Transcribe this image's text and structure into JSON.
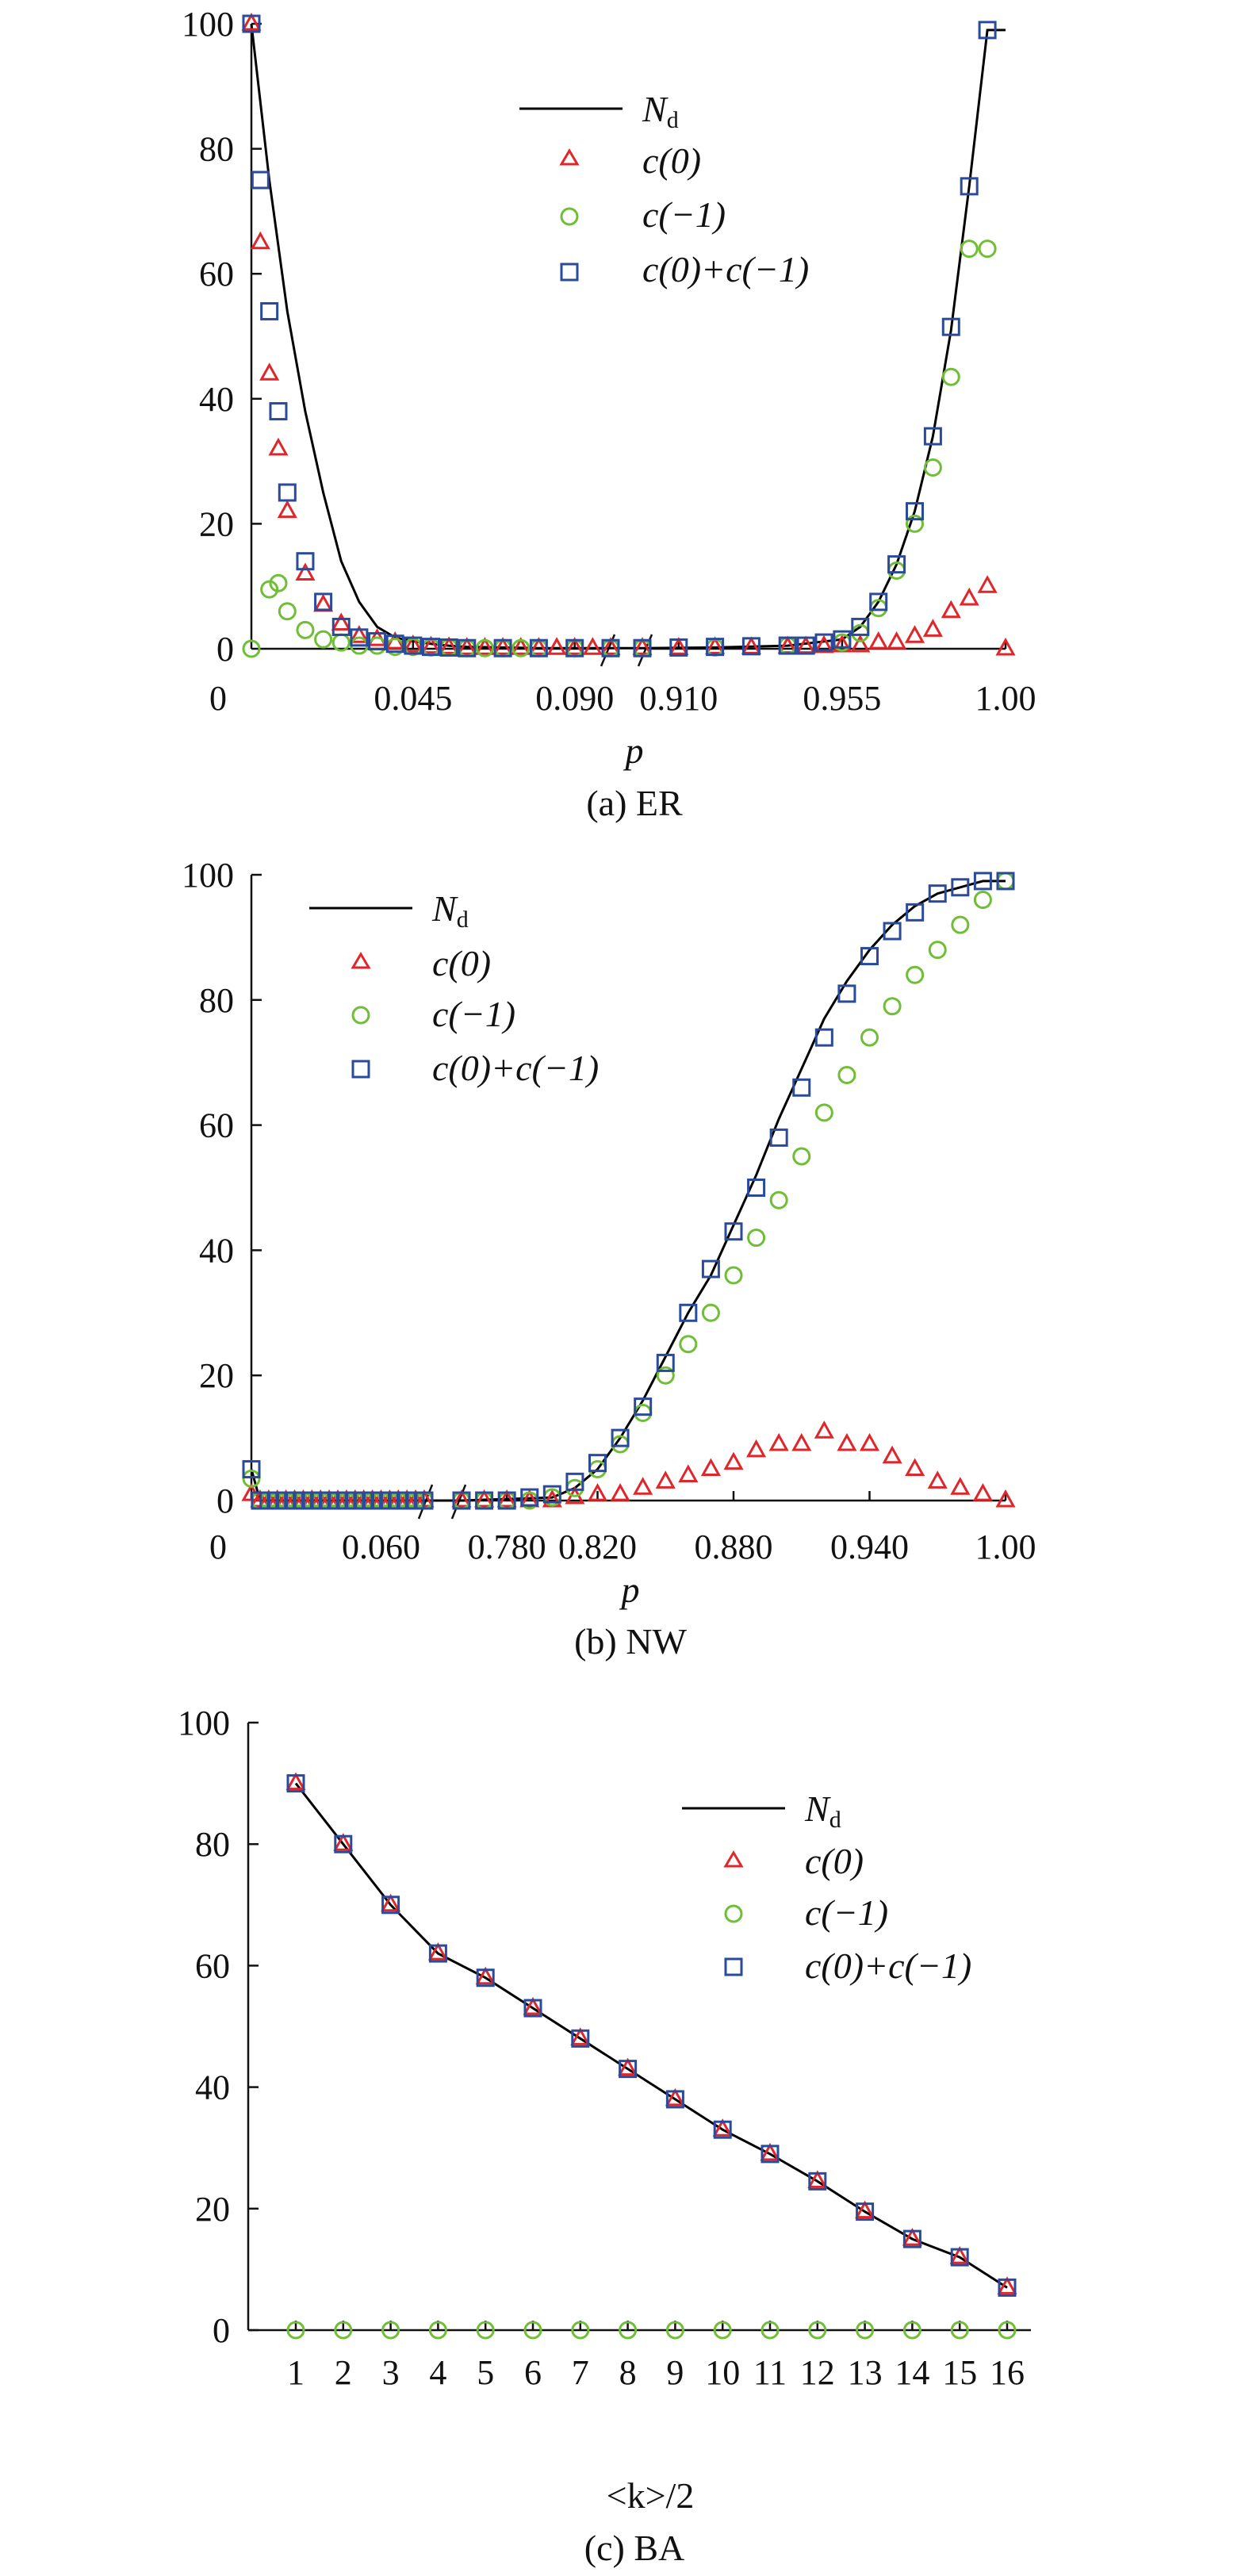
{
  "colors": {
    "c0": "#e0262a",
    "cm1": "#6fbe35",
    "sum": "#2a4b9b",
    "nd": "#000000"
  },
  "legend": {
    "nd_main": "N",
    "nd_sub": "d",
    "c0": "c(0)",
    "cm1": "c(−1)",
    "sum_a": "c(0)+c(−1)",
    "sum_b": "c(0)+c(−1)",
    "sum_c": "c(0)+c(−1)"
  },
  "chart_data": [
    {
      "type": "scatter",
      "panel": "(a) ER",
      "caption": "(a) ER",
      "xlabel": "p",
      "ylabel": "",
      "ylim": [
        0,
        100
      ],
      "x_break": [
        0.1,
        0.9
      ],
      "xticks": [
        "0.045",
        "0.090",
        "0.910",
        "0.955",
        "1.00"
      ],
      "yticks": [
        "0",
        "20",
        "40",
        "60",
        "80",
        "100"
      ],
      "legend_position": "top-center",
      "series": [
        {
          "name": "Nd",
          "style": "line",
          "x": [
            0,
            0.005,
            0.01,
            0.015,
            0.02,
            0.025,
            0.03,
            0.035,
            0.04,
            0.045,
            0.05,
            0.055,
            0.06,
            0.07,
            0.08,
            0.09,
            0.1,
            0.9,
            0.92,
            0.94,
            0.955,
            0.96,
            0.965,
            0.97,
            0.975,
            0.98,
            0.985,
            0.99,
            0.995,
            1.0
          ],
          "y": [
            100,
            75,
            54,
            38,
            25,
            14,
            7.5,
            3.5,
            1.8,
            1.2,
            0.8,
            0.5,
            0.3,
            0.2,
            0.1,
            0.1,
            0.1,
            0.1,
            0.2,
            0.5,
            1.5,
            3.5,
            7.5,
            13.5,
            22,
            34,
            51,
            74,
            99,
            99
          ]
        },
        {
          "name": "c(0)",
          "style": "triangle",
          "x": [
            0,
            0.0025,
            0.005,
            0.0075,
            0.01,
            0.015,
            0.02,
            0.025,
            0.03,
            0.035,
            0.04,
            0.045,
            0.05,
            0.055,
            0.06,
            0.065,
            0.07,
            0.075,
            0.08,
            0.085,
            0.09,
            0.095,
            0.1,
            0.9,
            0.91,
            0.92,
            0.93,
            0.94,
            0.945,
            0.95,
            0.955,
            0.96,
            0.965,
            0.97,
            0.975,
            0.98,
            0.985,
            0.99,
            0.995,
            1.0
          ],
          "y": [
            100,
            65,
            44,
            32,
            22,
            12,
            7,
            4,
            2,
            1.5,
            1,
            0.5,
            0.3,
            0.2,
            0.1,
            0.1,
            0.1,
            0.1,
            0.1,
            0.1,
            0.1,
            0.1,
            0.1,
            0.1,
            0.1,
            0.2,
            0.2,
            0.3,
            0.3,
            0.4,
            0.5,
            0.5,
            1,
            1,
            2,
            3,
            6,
            8,
            10,
            0
          ]
        },
        {
          "name": "c(−1)",
          "style": "circle",
          "x": [
            0,
            0.005,
            0.0075,
            0.01,
            0.015,
            0.02,
            0.025,
            0.03,
            0.035,
            0.04,
            0.045,
            0.05,
            0.055,
            0.06,
            0.065,
            0.07,
            0.075,
            0.08,
            0.09,
            0.1,
            0.9,
            0.92,
            0.94,
            0.955,
            0.96,
            0.965,
            0.97,
            0.975,
            0.98,
            0.985,
            0.99,
            0.995
          ],
          "y": [
            0,
            9.5,
            10.5,
            6,
            3,
            1.5,
            1,
            0.5,
            0.5,
            0.3,
            0.3,
            0.2,
            0.2,
            0.1,
            0.1,
            0.1,
            0.1,
            0.1,
            0.1,
            0.1,
            0.1,
            0.2,
            0.5,
            1,
            2.5,
            6.5,
            12.5,
            20,
            29,
            43.5,
            64,
            64
          ]
        },
        {
          "name": "c(0)+c(−1)",
          "style": "square",
          "x": [
            0,
            0.0025,
            0.005,
            0.0075,
            0.01,
            0.015,
            0.02,
            0.025,
            0.03,
            0.035,
            0.04,
            0.045,
            0.05,
            0.055,
            0.06,
            0.07,
            0.08,
            0.09,
            0.1,
            0.9,
            0.91,
            0.92,
            0.93,
            0.94,
            0.945,
            0.95,
            0.955,
            0.96,
            0.965,
            0.97,
            0.975,
            0.98,
            0.985,
            0.99,
            0.995
          ],
          "y": [
            100,
            75,
            54,
            38,
            25,
            14,
            7.5,
            3.5,
            1.8,
            1.2,
            0.8,
            0.5,
            0.3,
            0.2,
            0.1,
            0.1,
            0.1,
            0.1,
            0.1,
            0.1,
            0.2,
            0.3,
            0.4,
            0.5,
            0.5,
            1,
            1.5,
            3.5,
            7.5,
            13.5,
            22,
            34,
            51.5,
            74,
            99
          ]
        }
      ]
    },
    {
      "type": "scatter",
      "panel": "(b) NW",
      "caption": "(b) NW",
      "xlabel": "p",
      "ylabel": "",
      "ylim": [
        0,
        100
      ],
      "x_break": [
        0.08,
        0.76
      ],
      "xticks": [
        "0.060",
        "0.780",
        "0.820",
        "0.880",
        "0.940",
        "1.00"
      ],
      "yticks": [
        "0",
        "20",
        "40",
        "60",
        "80",
        "100"
      ],
      "legend_position": "top-left",
      "series": [
        {
          "name": "Nd",
          "style": "line",
          "x": [
            0,
            0.004,
            0.08,
            0.76,
            0.8,
            0.81,
            0.82,
            0.83,
            0.84,
            0.85,
            0.86,
            0.87,
            0.88,
            0.89,
            0.9,
            0.91,
            0.92,
            0.93,
            0.94,
            0.95,
            0.96,
            0.97,
            0.98,
            0.99,
            1.0
          ],
          "y": [
            5,
            0,
            0,
            0,
            0.5,
            2,
            5,
            10,
            16,
            23,
            30,
            36,
            44,
            52,
            61,
            69,
            77,
            83,
            88,
            92,
            95,
            97,
            98,
            99,
            99
          ]
        },
        {
          "name": "c(0)",
          "style": "triangle",
          "x": [
            0,
            0.004,
            0.008,
            0.012,
            0.016,
            0.02,
            0.024,
            0.028,
            0.032,
            0.036,
            0.04,
            0.044,
            0.048,
            0.052,
            0.056,
            0.06,
            0.064,
            0.068,
            0.072,
            0.076,
            0.08,
            0.76,
            0.77,
            0.78,
            0.79,
            0.8,
            0.81,
            0.82,
            0.83,
            0.84,
            0.85,
            0.86,
            0.87,
            0.88,
            0.89,
            0.9,
            0.91,
            0.92,
            0.93,
            0.94,
            0.95,
            0.96,
            0.97,
            0.98,
            0.99,
            1.0
          ],
          "y": [
            1,
            0,
            0,
            0,
            0,
            0,
            0,
            0,
            0,
            0,
            0,
            0,
            0,
            0,
            0,
            0,
            0,
            0,
            0,
            0,
            0,
            0,
            0,
            0,
            0,
            0,
            0.5,
            1,
            1,
            2,
            3,
            4,
            5,
            6,
            8,
            9,
            9,
            11,
            9,
            9,
            7,
            5,
            3,
            2,
            1,
            0
          ]
        },
        {
          "name": "c(−1)",
          "style": "circle",
          "x": [
            0,
            0.004,
            0.008,
            0.012,
            0.016,
            0.02,
            0.024,
            0.028,
            0.032,
            0.036,
            0.04,
            0.044,
            0.048,
            0.052,
            0.056,
            0.06,
            0.064,
            0.068,
            0.072,
            0.076,
            0.08,
            0.76,
            0.77,
            0.78,
            0.79,
            0.8,
            0.81,
            0.82,
            0.83,
            0.84,
            0.85,
            0.86,
            0.87,
            0.88,
            0.89,
            0.9,
            0.91,
            0.92,
            0.93,
            0.94,
            0.95,
            0.96,
            0.97,
            0.98,
            0.99,
            1.0
          ],
          "y": [
            3.5,
            0,
            0,
            0,
            0,
            0,
            0,
            0,
            0,
            0,
            0,
            0,
            0,
            0,
            0,
            0,
            0,
            0,
            0,
            0,
            0,
            0,
            0,
            0,
            0,
            0.5,
            2,
            5,
            9,
            14,
            20,
            25,
            30,
            36,
            42,
            48,
            55,
            62,
            68,
            74,
            79,
            84,
            88,
            92,
            96,
            99
          ]
        },
        {
          "name": "c(0)+c(−1)",
          "style": "square",
          "x": [
            0,
            0.004,
            0.008,
            0.012,
            0.016,
            0.02,
            0.024,
            0.028,
            0.032,
            0.036,
            0.04,
            0.044,
            0.048,
            0.052,
            0.056,
            0.06,
            0.064,
            0.068,
            0.072,
            0.076,
            0.08,
            0.76,
            0.77,
            0.78,
            0.79,
            0.8,
            0.81,
            0.82,
            0.83,
            0.84,
            0.85,
            0.86,
            0.87,
            0.88,
            0.89,
            0.9,
            0.91,
            0.92,
            0.93,
            0.94,
            0.95,
            0.96,
            0.97,
            0.98,
            0.99,
            1.0
          ],
          "y": [
            5,
            0,
            0,
            0,
            0,
            0,
            0,
            0,
            0,
            0,
            0,
            0,
            0,
            0,
            0,
            0,
            0,
            0,
            0,
            0,
            0,
            0,
            0,
            0,
            0.5,
            1,
            3,
            6,
            10,
            15,
            22,
            30,
            37,
            43,
            50,
            58,
            66,
            74,
            81,
            87,
            91,
            94,
            97,
            98,
            99,
            99
          ]
        }
      ]
    },
    {
      "type": "line",
      "panel": "(c) BA",
      "caption": "(c) BA",
      "xlabel": "<k>/2",
      "ylabel": "",
      "ylim": [
        0,
        100
      ],
      "xticks": [
        "1",
        "2",
        "3",
        "4",
        "5",
        "6",
        "7",
        "8",
        "9",
        "10",
        "11",
        "12",
        "13",
        "14",
        "15",
        "16"
      ],
      "yticks": [
        "0",
        "20",
        "40",
        "60",
        "80",
        "100"
      ],
      "legend_position": "top-right",
      "series": [
        {
          "name": "Nd",
          "style": "line",
          "x": [
            1,
            2,
            3,
            4,
            5,
            6,
            7,
            8,
            9,
            10,
            11,
            12,
            13,
            14,
            15,
            16
          ],
          "y": [
            90,
            80,
            70,
            62,
            58,
            53,
            48,
            43,
            38,
            33,
            29,
            24.5,
            19.5,
            15,
            12,
            7
          ]
        },
        {
          "name": "c(0)",
          "style": "triangle",
          "x": [
            1,
            2,
            3,
            4,
            5,
            6,
            7,
            8,
            9,
            10,
            11,
            12,
            13,
            14,
            15,
            16
          ],
          "y": [
            90,
            80,
            70,
            62,
            58,
            53,
            48,
            43,
            38,
            33,
            29,
            24.5,
            19.5,
            15,
            12,
            7
          ]
        },
        {
          "name": "c(−1)",
          "style": "circle",
          "x": [
            1,
            2,
            3,
            4,
            5,
            6,
            7,
            8,
            9,
            10,
            11,
            12,
            13,
            14,
            15,
            16
          ],
          "y": [
            0,
            0,
            0,
            0,
            0,
            0,
            0,
            0,
            0,
            0,
            0,
            0,
            0,
            0,
            0,
            0
          ]
        },
        {
          "name": "c(0)+c(−1)",
          "style": "square",
          "x": [
            1,
            2,
            3,
            4,
            5,
            6,
            7,
            8,
            9,
            10,
            11,
            12,
            13,
            14,
            15,
            16
          ],
          "y": [
            90,
            80,
            70,
            62,
            58,
            53,
            48,
            43,
            38,
            33,
            29,
            24.5,
            19.5,
            15,
            12,
            7
          ]
        }
      ]
    }
  ]
}
